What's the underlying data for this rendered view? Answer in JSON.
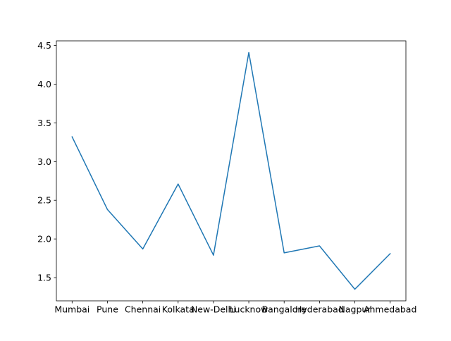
{
  "chart_data": {
    "type": "line",
    "title": "",
    "xlabel": "",
    "ylabel": "",
    "categories": [
      "Mumbai",
      "Pune",
      "Chennai",
      "Kolkata",
      "New-Delhi",
      "Lucknow",
      "Bangalore",
      "Hyderabad",
      "Nagpur",
      "Ahmedabad"
    ],
    "series": [
      {
        "values": [
          3.32,
          2.38,
          1.87,
          2.71,
          1.79,
          4.41,
          1.82,
          1.91,
          1.35,
          1.81
        ],
        "color": "#1f77b4"
      }
    ],
    "ylim": [
      1.2,
      4.56
    ],
    "yticks": [
      1.5,
      2.0,
      2.5,
      3.0,
      3.5,
      4.0,
      4.5
    ],
    "ytick_labels": [
      "1.5",
      "2.0",
      "2.5",
      "3.0",
      "3.5",
      "4.0",
      "4.5"
    ],
    "grid": false,
    "legend": "none"
  }
}
